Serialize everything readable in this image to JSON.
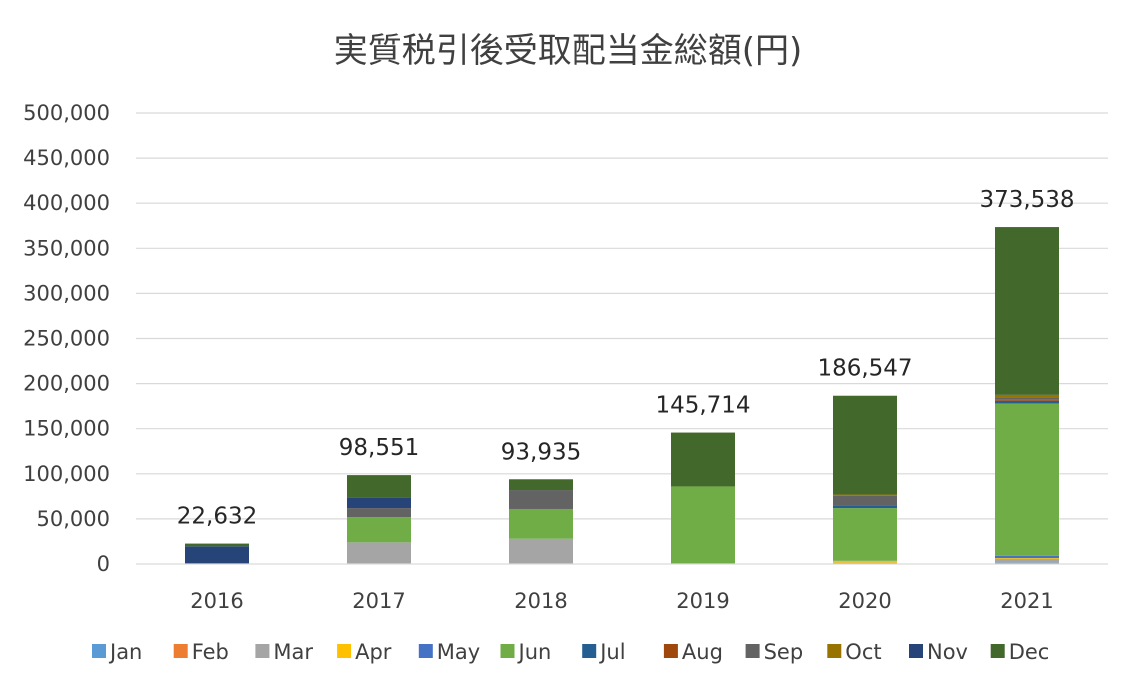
{
  "chart_data": {
    "type": "bar",
    "stacked": true,
    "title": "実質税引後受取配当金総額(円)",
    "xlabel": "",
    "ylabel": "",
    "ylim": [
      0,
      500000
    ],
    "yticks": [
      0,
      50000,
      100000,
      150000,
      200000,
      250000,
      300000,
      350000,
      400000,
      450000,
      500000
    ],
    "ytick_labels": [
      "0",
      "50,000",
      "100,000",
      "150,000",
      "200,000",
      "250,000",
      "300,000",
      "350,000",
      "400,000",
      "450,000",
      "500,000"
    ],
    "grid": true,
    "legend_position": "bottom",
    "categories": [
      "2016",
      "2017",
      "2018",
      "2019",
      "2020",
      "2021"
    ],
    "totals": [
      22632,
      98551,
      93935,
      145714,
      186547,
      373538
    ],
    "total_labels": [
      "22,632",
      "98,551",
      "93,935",
      "145,714",
      "186,547",
      "373,538"
    ],
    "series": [
      {
        "name": "Jan",
        "color": "#5B9BD5",
        "values": [
          0,
          0,
          0,
          0,
          0,
          1500
        ]
      },
      {
        "name": "Feb",
        "color": "#ED7D31",
        "values": [
          0,
          0,
          0,
          0,
          0,
          0
        ]
      },
      {
        "name": "Mar",
        "color": "#A5A5A5",
        "values": [
          0,
          24000,
          28000,
          0,
          1500,
          4000
        ]
      },
      {
        "name": "Apr",
        "color": "#FFC000",
        "values": [
          0,
          0,
          0,
          0,
          2000,
          1000
        ]
      },
      {
        "name": "May",
        "color": "#4472C4",
        "values": [
          0,
          0,
          0,
          0,
          0,
          2500
        ]
      },
      {
        "name": "Jun",
        "color": "#70AD47",
        "values": [
          0,
          28000,
          33000,
          86000,
          58500,
          169000
        ]
      },
      {
        "name": "Jul",
        "color": "#255E91",
        "values": [
          0,
          0,
          0,
          0,
          3000,
          3000
        ]
      },
      {
        "name": "Aug",
        "color": "#9E480E",
        "values": [
          0,
          0,
          0,
          0,
          0,
          1000
        ]
      },
      {
        "name": "Sep",
        "color": "#636363",
        "values": [
          0,
          10000,
          21000,
          0,
          10500,
          2500
        ]
      },
      {
        "name": "Oct",
        "color": "#997300",
        "values": [
          0,
          0,
          0,
          0,
          1500,
          3000
        ]
      },
      {
        "name": "Nov",
        "color": "#264478",
        "values": [
          19632,
          12000,
          0,
          0,
          0,
          0
        ]
      },
      {
        "name": "Dec",
        "color": "#43682B",
        "values": [
          3000,
          24551,
          11935,
          59714,
          109547,
          186038
        ]
      }
    ]
  }
}
